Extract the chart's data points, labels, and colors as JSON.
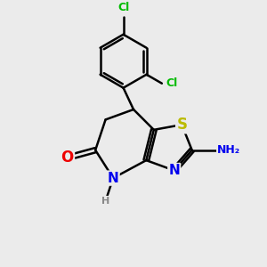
{
  "bg_color": "#ebebeb",
  "bond_color": "#000000",
  "bond_width": 1.8,
  "atom_colors": {
    "C": "#000000",
    "N": "#0000ee",
    "O": "#ee0000",
    "S": "#bbbb00",
    "Cl": "#00bb00",
    "H": "#888888",
    "NH2": "#0000ee"
  },
  "font_size": 10,
  "small_font_size": 8,
  "xlim": [
    0,
    10
  ],
  "ylim": [
    0,
    10
  ]
}
